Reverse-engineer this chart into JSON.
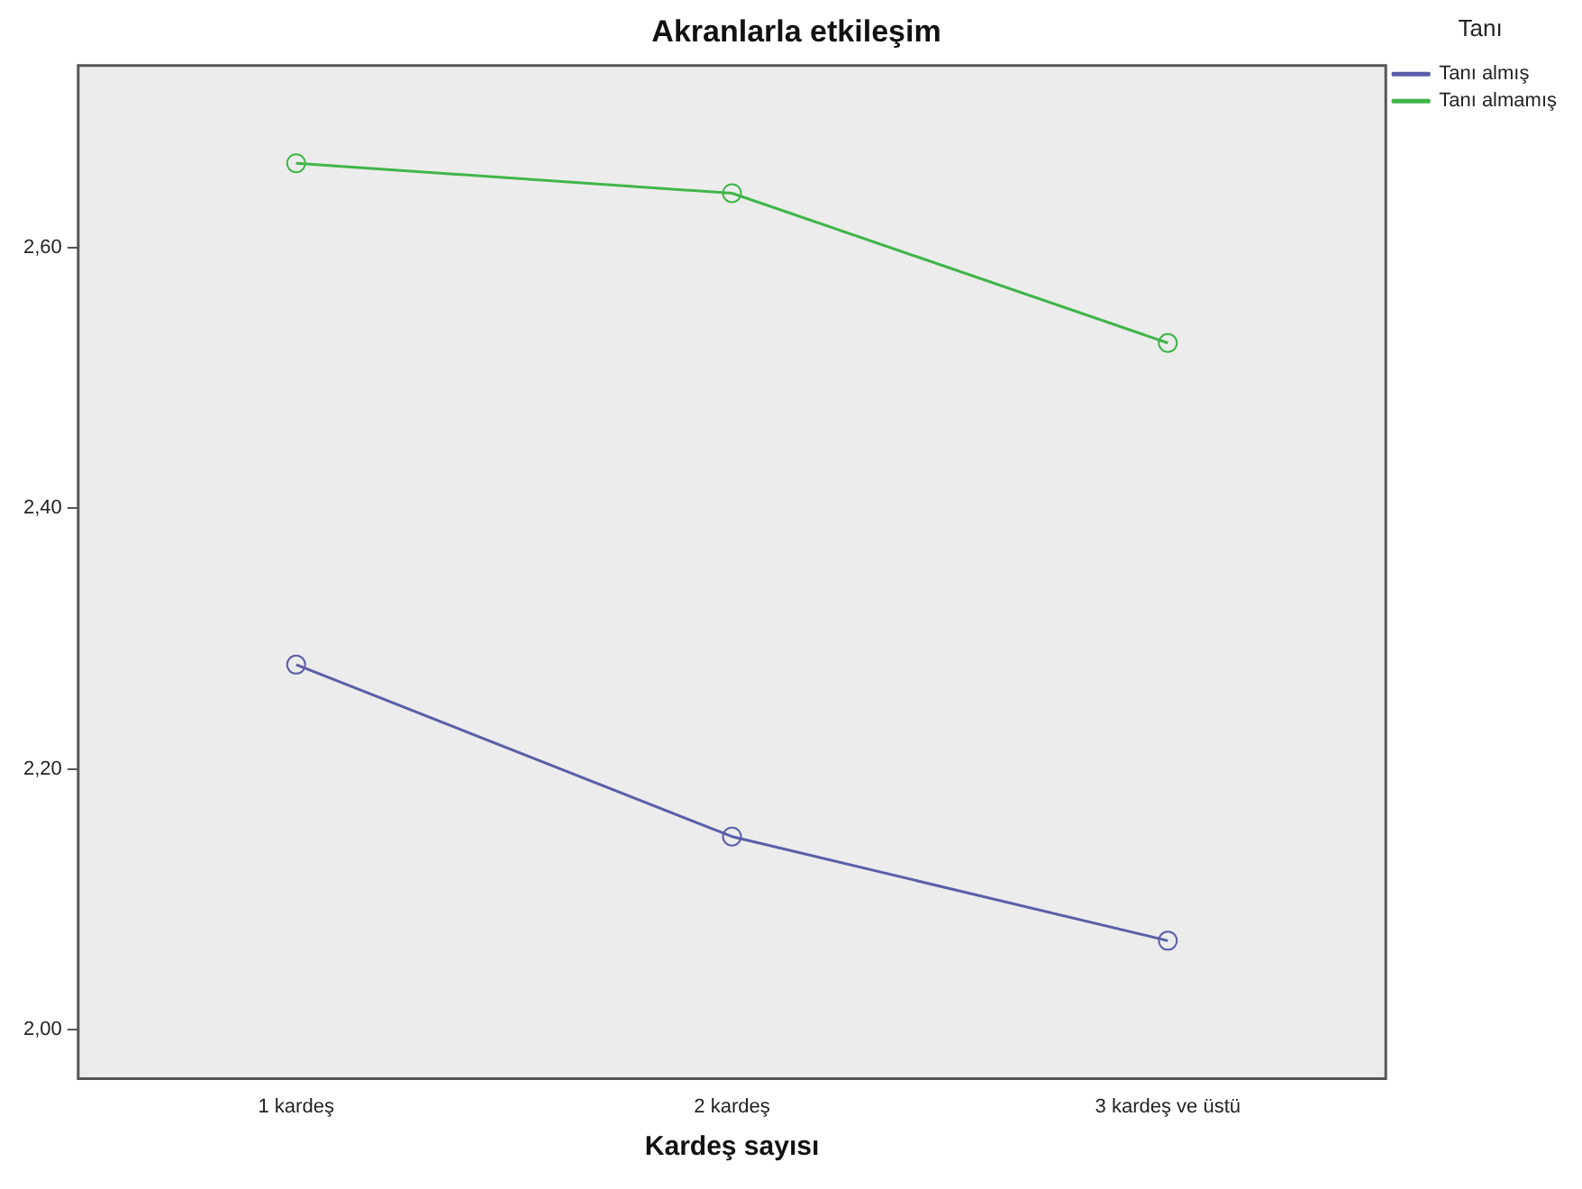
{
  "chart_data": {
    "type": "line",
    "title": "Akranlarla etkileşim",
    "xlabel": "Kardeş sayısı",
    "legend_title": "Tanı",
    "categories": [
      "1 kardeş",
      "2 kardeş",
      "3 kardeş ve üstü"
    ],
    "series": [
      {
        "name": "Tanı almış",
        "color": "#5a5fa8",
        "values": [
          2.28,
          2.148,
          2.068
        ]
      },
      {
        "name": "Tanı almamış",
        "color": "#3fb548",
        "values": [
          2.665,
          2.642,
          2.527
        ]
      }
    ],
    "ylim": [
      1.962,
      2.74
    ],
    "yticks": [
      {
        "value": 2.0,
        "label": "2,00"
      },
      {
        "value": 2.2,
        "label": "2,20"
      },
      {
        "value": 2.4,
        "label": "2,40"
      },
      {
        "value": 2.6,
        "label": "2,60"
      }
    ],
    "grid": false,
    "legend": "top right",
    "marker": "circle",
    "line_style": "solid"
  }
}
